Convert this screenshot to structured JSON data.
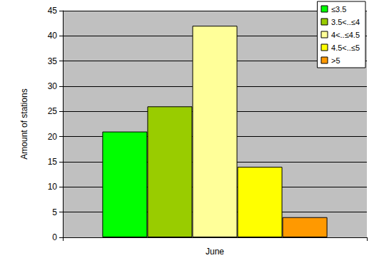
{
  "chart_data": {
    "type": "bar",
    "ylabel": "Amount of stations",
    "categories": [
      "June"
    ],
    "series": [
      {
        "name": "≤3.5",
        "color": "#00ff00",
        "values": [
          21
        ]
      },
      {
        "name": "3.5<..≤4",
        "color": "#99cc00",
        "values": [
          26
        ]
      },
      {
        "name": "4<..≤4.5",
        "color": "#ffff99",
        "values": [
          42
        ]
      },
      {
        "name": "4.5<..≤5",
        "color": "#ffff00",
        "values": [
          14
        ]
      },
      {
        "name": ">5",
        "color": "#ff9900",
        "values": [
          4
        ]
      }
    ],
    "ylim": [
      0,
      45
    ],
    "yticks": [
      0,
      5,
      10,
      15,
      20,
      25,
      30,
      35,
      40,
      45
    ],
    "grid": true,
    "legend": "upper right"
  }
}
